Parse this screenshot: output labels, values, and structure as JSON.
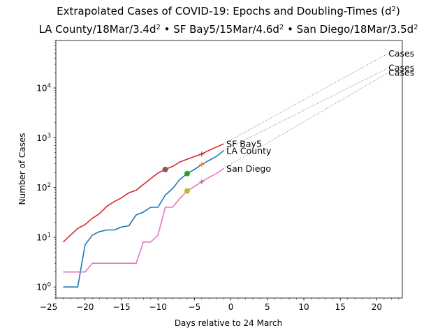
{
  "chart_data": {
    "type": "line",
    "title_line1_text": "Extrapolated Cases of COVID-19: Epochs and Doubling-Times (d",
    "title_line1_sup": "2",
    "title_line1_close": ")",
    "title_line2_parts": [
      {
        "text": "LA County/18Mar/3.4d",
        "sup": "2"
      },
      {
        "text": " • SF Bay5/15Mar/4.6d",
        "sup": "2"
      },
      {
        "text": " • San Diego/18Mar/3.5d",
        "sup": "2"
      }
    ],
    "xlabel": "Days relative to 24 March",
    "ylabel": "Number of Cases",
    "xlim": [
      -24,
      23.5
    ],
    "ylim": [
      0.6,
      90000
    ],
    "yscale": "log",
    "grid": false,
    "xticks": [
      -25,
      -20,
      -15,
      -10,
      -5,
      0,
      5,
      10,
      15,
      20
    ],
    "yticks": [
      {
        "value": 1,
        "base": "10",
        "exp": "0"
      },
      {
        "value": 10,
        "base": "10",
        "exp": "1"
      },
      {
        "value": 100,
        "base": "10",
        "exp": "2"
      },
      {
        "value": 1000,
        "base": "10",
        "exp": "3"
      },
      {
        "value": 10000,
        "base": "10",
        "exp": "4"
      }
    ],
    "series": [
      {
        "name": "SF Bay5",
        "color": "#d62728",
        "x": [
          -23,
          -22,
          -21,
          -20,
          -19,
          -18,
          -17,
          -16,
          -15,
          -14,
          -13,
          -12,
          -11,
          -10,
          -9,
          -8,
          -7,
          -6,
          -5,
          -4,
          -3,
          -2,
          -1
        ],
        "y": [
          8,
          11,
          15,
          18,
          24,
          30,
          42,
          52,
          62,
          78,
          88,
          115,
          150,
          195,
          230,
          265,
          325,
          370,
          420,
          470,
          560,
          650,
          750
        ],
        "epoch_x": -9,
        "epoch_y": 230,
        "epoch_color": "#8c564b",
        "marker_x": -4,
        "marker_y": 470,
        "marker_color": "#d62728",
        "label": "SF Bay5"
      },
      {
        "name": "LA County",
        "color": "#1f77b4",
        "x": [
          -23,
          -22,
          -21,
          -20,
          -19,
          -18,
          -17,
          -16,
          -15,
          -14,
          -13,
          -12,
          -11,
          -10,
          -9,
          -8,
          -7,
          -6,
          -5,
          -4,
          -3,
          -2,
          -1
        ],
        "y": [
          1,
          1,
          1,
          7,
          11,
          13,
          14,
          14,
          16,
          17,
          28,
          32,
          40,
          40,
          70,
          95,
          145,
          190,
          230,
          290,
          350,
          420,
          550
        ],
        "epoch_x": -6,
        "epoch_y": 190,
        "epoch_color": "#2ca02c",
        "marker_x": -4,
        "marker_y": 290,
        "marker_color": "#ff7f0e",
        "label": "LA County"
      },
      {
        "name": "San Diego",
        "color": "#e377c2",
        "x": [
          -23,
          -22,
          -21,
          -20,
          -19,
          -18,
          -17,
          -16,
          -15,
          -14,
          -13,
          -12,
          -11,
          -10,
          -9,
          -8,
          -7,
          -6,
          -5,
          -4,
          -3,
          -2,
          -1
        ],
        "y": [
          2,
          2,
          2,
          2,
          3,
          3,
          3,
          3,
          3,
          3,
          3,
          8,
          8,
          11,
          40,
          40,
          60,
          85,
          105,
          130,
          160,
          190,
          240
        ],
        "epoch_x": -6,
        "epoch_y": 85,
        "epoch_color": "#bcbd22",
        "marker_x": -4,
        "marker_y": 130,
        "marker_color": "#7f7f7f",
        "label": "San Diego"
      }
    ],
    "extrapolations": [
      {
        "from_x": -1,
        "from_y": 750,
        "to_x": 21.5,
        "to_y": 49000,
        "label": "Cases"
      },
      {
        "from_x": -1,
        "from_y": 550,
        "to_x": 21.5,
        "to_y": 25000,
        "label": "Cases"
      },
      {
        "from_x": -1,
        "from_y": 240,
        "to_x": 21.5,
        "to_y": 20000,
        "label": "Cases"
      }
    ]
  }
}
